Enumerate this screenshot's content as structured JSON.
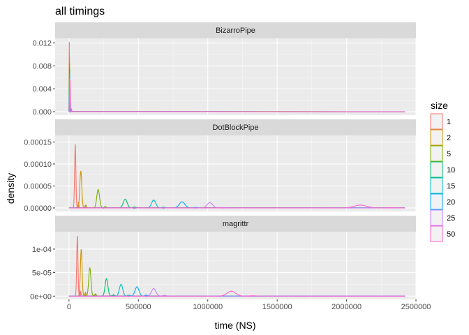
{
  "chart_data": {
    "type": "line",
    "title": "all timings",
    "xlabel": "time (NS)",
    "ylabel": "density",
    "xlim": [
      -100000,
      2500000
    ],
    "x_ticks": [
      0,
      500000,
      1000000,
      1500000,
      2000000,
      2500000
    ],
    "x_tick_labels": [
      "0",
      "500000",
      "1000000",
      "1500000",
      "2000000",
      "2500000"
    ],
    "grid": true,
    "legend": {
      "title": "size",
      "position": "right",
      "entries": [
        "1",
        "2",
        "5",
        "10",
        "15",
        "20",
        "25",
        "50"
      ]
    },
    "series_colors": {
      "1": "#F8766D",
      "2": "#CD9600",
      "5": "#7CAE00",
      "10": "#00BE67",
      "15": "#00BFC4",
      "20": "#00A9FF",
      "25": "#C77CFF",
      "50": "#FF61CC"
    },
    "x_range_max": 2420000,
    "facets": [
      {
        "name": "BizarroPipe",
        "ylim": [
          -0.0006,
          0.0128
        ],
        "y_ticks": [
          0,
          0.004,
          0.008,
          0.012
        ],
        "y_tick_labels": [
          "0.000",
          "0.004",
          "0.008",
          "0.012"
        ],
        "series": [
          {
            "name": "1",
            "peak_x": 2000,
            "peak": 0.0122,
            "width": 1200
          },
          {
            "name": "2",
            "peak_x": 3000,
            "peak": 0.0098,
            "width": 1400
          },
          {
            "name": "5",
            "peak_x": 3500,
            "peak": 0.0085,
            "width": 1500
          },
          {
            "name": "10",
            "peak_x": 4000,
            "peak": 0.0075,
            "width": 1600
          },
          {
            "name": "15",
            "peak_x": 4500,
            "peak": 0.0068,
            "width": 1700
          },
          {
            "name": "20",
            "peak_x": 5000,
            "peak": 0.0062,
            "width": 1800
          },
          {
            "name": "25",
            "peak_x": 5500,
            "peak": 0.0058,
            "width": 1900
          },
          {
            "name": "50",
            "peak_x": 7000,
            "peak": 0.0055,
            "width": 2200
          }
        ]
      },
      {
        "name": "DotBlockPipe",
        "ylim": [
          -8e-06,
          0.000165
        ],
        "y_ticks": [
          0,
          5e-05,
          0.0001,
          0.00015
        ],
        "y_tick_labels": [
          "0.00000",
          "0.00005",
          "0.00010",
          "0.00015"
        ],
        "series": [
          {
            "name": "1",
            "peak_x": 45000,
            "peak": 0.000145,
            "width": 4500
          },
          {
            "name": "2",
            "peak_x": 85000,
            "peak": 8.4e-05,
            "width": 7000
          },
          {
            "name": "5",
            "peak_x": 210000,
            "peak": 4.2e-05,
            "width": 10000
          },
          {
            "name": "10",
            "peak_x": 405000,
            "peak": 2e-05,
            "width": 14000
          },
          {
            "name": "15",
            "peak_x": 610000,
            "peak": 1.8e-05,
            "width": 15000
          },
          {
            "name": "20",
            "peak_x": 815000,
            "peak": 1.4e-05,
            "width": 20000
          },
          {
            "name": "25",
            "peak_x": 1015000,
            "peak": 1.2e-05,
            "width": 20000
          },
          {
            "name": "50",
            "peak_x": 2100000,
            "peak": 6.5e-06,
            "width": 45000
          }
        ]
      },
      {
        "name": "magrittr",
        "ylim": [
          -7e-06,
          0.000137
        ],
        "y_ticks": [
          0,
          5e-05,
          0.0001
        ],
        "y_tick_labels": [
          "0e+00",
          "5e-05",
          "1e-04"
        ],
        "series": [
          {
            "name": "1",
            "peak_x": 60000,
            "peak": 0.000128,
            "width": 4500
          },
          {
            "name": "2",
            "peak_x": 88000,
            "peak": 0.0001,
            "width": 6000
          },
          {
            "name": "5",
            "peak_x": 150000,
            "peak": 6e-05,
            "width": 8000
          },
          {
            "name": "10",
            "peak_x": 270000,
            "peak": 3.7e-05,
            "width": 10000
          },
          {
            "name": "15",
            "peak_x": 375000,
            "peak": 2.5e-05,
            "width": 12000
          },
          {
            "name": "20",
            "peak_x": 490000,
            "peak": 2e-05,
            "width": 14000
          },
          {
            "name": "25",
            "peak_x": 610000,
            "peak": 1.6e-05,
            "width": 16000
          },
          {
            "name": "50",
            "peak_x": 1170000,
            "peak": 1.05e-05,
            "width": 30000
          }
        ]
      }
    ]
  }
}
